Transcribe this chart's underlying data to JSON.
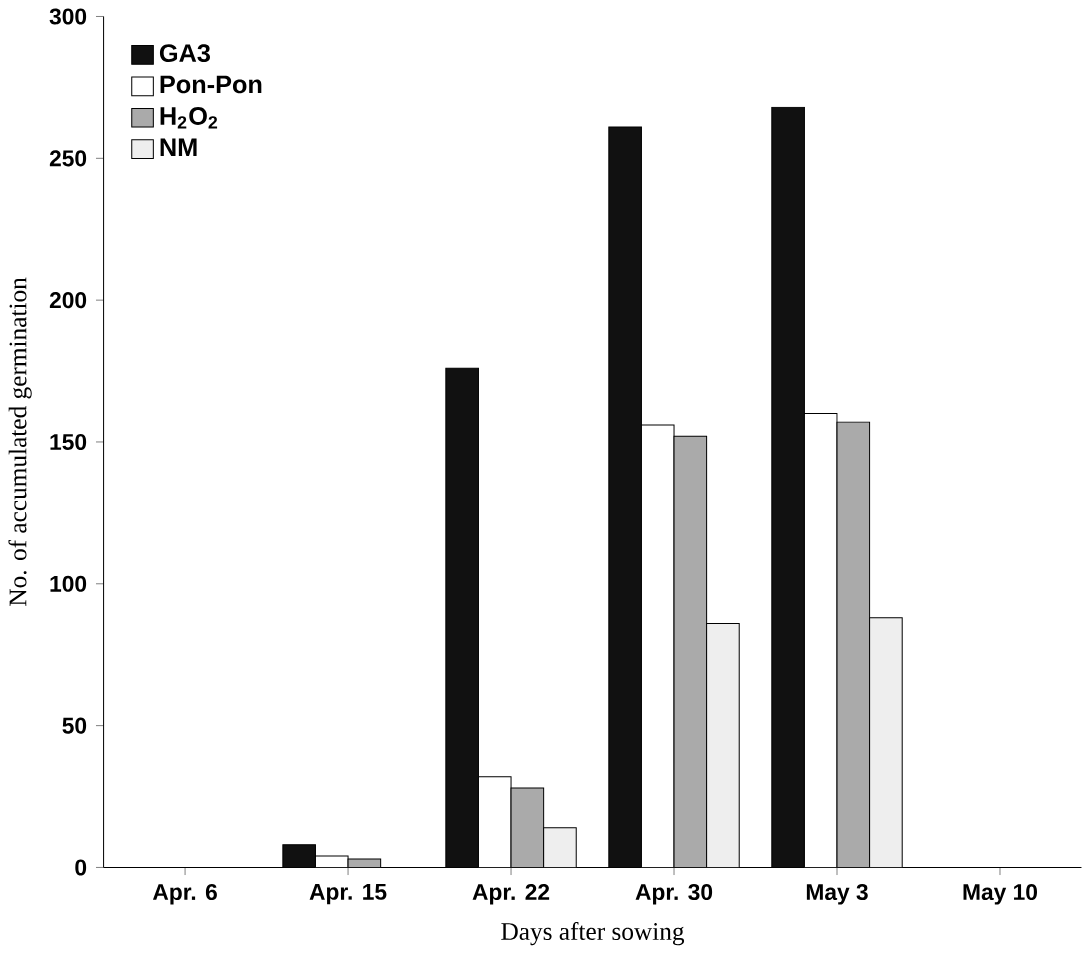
{
  "chart_data": {
    "type": "bar",
    "xlabel": "Days after sowing",
    "ylabel": "No. of accumulated germination",
    "categories": [
      "Apr. 6",
      "Apr. 15",
      "Apr. 22",
      "Apr. 30",
      "May 3",
      "May 10"
    ],
    "series": [
      {
        "name": "GA3",
        "color": "#111111",
        "values": [
          0,
          8,
          176,
          261,
          268,
          0
        ]
      },
      {
        "name": "Pon-Pon",
        "color": "#ffffff",
        "values": [
          0,
          4,
          32,
          156,
          160,
          0
        ]
      },
      {
        "name": "H$_{2}$O$_{2}$",
        "color": "#aaaaaa",
        "values": [
          0,
          3,
          28,
          152,
          157,
          0
        ]
      },
      {
        "name": "NM",
        "color": "#eeeeee",
        "values": [
          0,
          0,
          14,
          86,
          88,
          0
        ]
      }
    ],
    "ylim": [
      0,
      300
    ],
    "yticks": [
      0,
      50,
      100,
      150,
      200,
      250,
      300
    ],
    "legend": "top left",
    "grid": false
  }
}
